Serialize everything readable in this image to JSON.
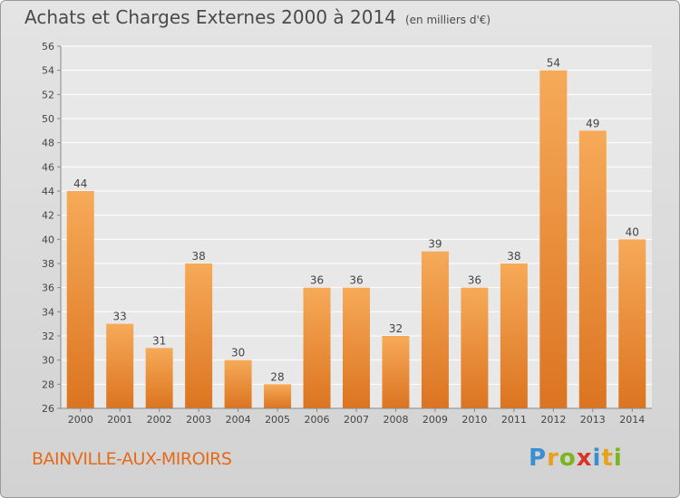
{
  "header": {
    "title": "Achats et Charges Externes 2000 à 2014",
    "unit": "(en milliers d'€)"
  },
  "footer": {
    "city": "BAINVILLE-AUX-MIROIRS",
    "brand": "Proxiti",
    "brand_letters": [
      {
        "ch": "P",
        "color": "#3a8fd0"
      },
      {
        "ch": "r",
        "color": "#e8a21a"
      },
      {
        "ch": "o",
        "color": "#7ab51d"
      },
      {
        "ch": "x",
        "color": "#d8342c"
      },
      {
        "ch": "i",
        "color": "#3a8fd0"
      },
      {
        "ch": "t",
        "color": "#e8a21a"
      },
      {
        "ch": "i",
        "color": "#7ab51d"
      }
    ]
  },
  "colors": {
    "bar_light": "#f6aa58",
    "bar_dark": "#dc7420",
    "grid": "#ffffff",
    "plot_bg": "#e8e8e8",
    "axis_text": "#444444",
    "title_text": "#4a4a4a",
    "city_text": "#e56a1a"
  },
  "chart_data": {
    "type": "bar",
    "title": "Achats et Charges Externes 2000 à 2014",
    "subtitle": "(en milliers d'€)",
    "xlabel": "",
    "ylabel": "",
    "categories": [
      "2000",
      "2001",
      "2002",
      "2003",
      "2004",
      "2005",
      "2006",
      "2007",
      "2008",
      "2009",
      "2010",
      "2011",
      "2012",
      "2013",
      "2014"
    ],
    "values": [
      44,
      33,
      31,
      38,
      30,
      28,
      36,
      36,
      32,
      39,
      36,
      38,
      54,
      49,
      40
    ],
    "ylim": [
      26,
      56
    ],
    "yticks": [
      26,
      28,
      30,
      32,
      34,
      36,
      38,
      40,
      42,
      44,
      46,
      48,
      50,
      52,
      54,
      56
    ],
    "grid": true,
    "data_labels": true
  }
}
